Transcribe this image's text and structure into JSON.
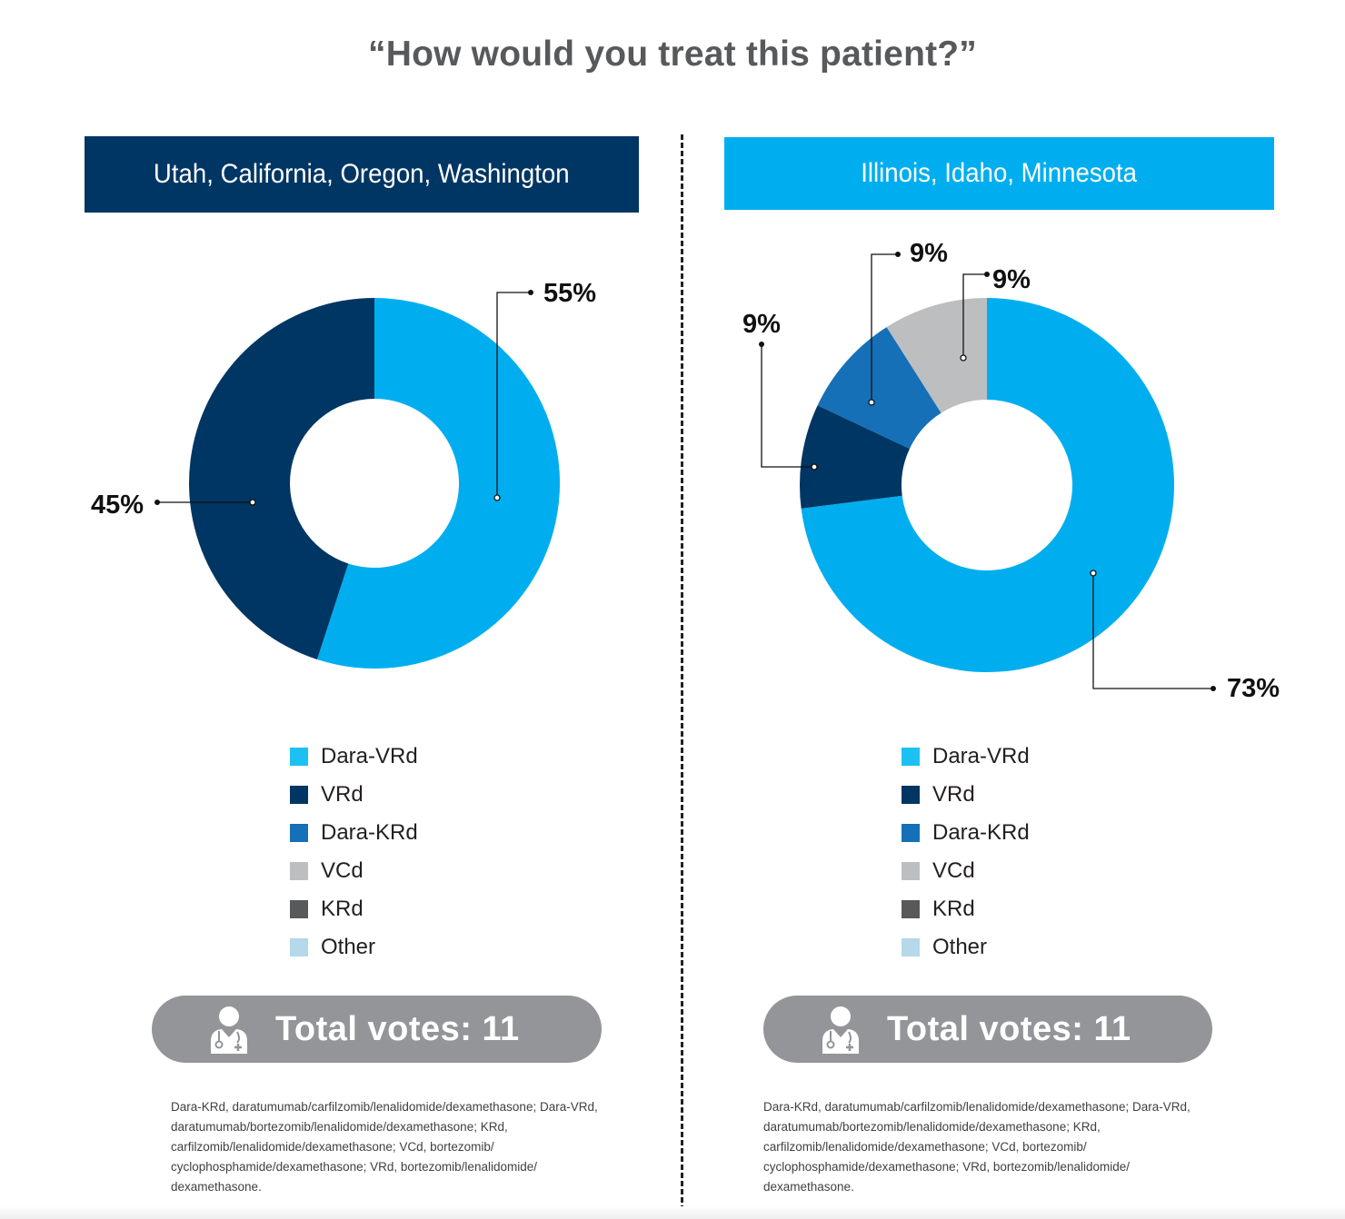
{
  "title": "“How would you treat this patient?”",
  "colors": {
    "dara_vrd": "#00aeef",
    "vrd": "#003663",
    "dara_krd": "#1570b8",
    "vcd": "#bcbec0",
    "krd": "#58595b",
    "other": "#b5d8ea",
    "header_left": "#003663",
    "header_right": "#00aeef",
    "votes_bg": "#939598"
  },
  "legend": [
    {
      "label": "Dara-VRd",
      "color": "#1cc1f2"
    },
    {
      "label": "VRd",
      "color": "#003663"
    },
    {
      "label": "Dara-KRd",
      "color": "#1570b8"
    },
    {
      "label": "VCd",
      "color": "#bcbec0"
    },
    {
      "label": "KRd",
      "color": "#58595b"
    },
    {
      "label": "Other",
      "color": "#b5d8ea"
    }
  ],
  "chart_data": [
    {
      "type": "pie",
      "title": "Utah, California, Oregon, Washington",
      "slices": [
        {
          "category": "Dara-VRd",
          "value": 55,
          "label": "55%",
          "color": "#00aeef"
        },
        {
          "category": "VRd",
          "value": 45,
          "label": "45%",
          "color": "#003663"
        }
      ],
      "total_votes_label": "Total votes: 11"
    },
    {
      "type": "pie",
      "title": "Illinois, Idaho, Minnesota",
      "slices": [
        {
          "category": "Dara-VRd",
          "value": 73,
          "label": "73%",
          "color": "#00aeef"
        },
        {
          "category": "VRd",
          "value": 9,
          "label": "9%",
          "color": "#003663"
        },
        {
          "category": "Dara-KRd",
          "value": 9,
          "label": "9%",
          "color": "#1570b8"
        },
        {
          "category": "VCd",
          "value": 9,
          "label": "9%",
          "color": "#bcbec0"
        }
      ],
      "total_votes_label": "Total votes: 11"
    }
  ],
  "footnote": "Dara-KRd, daratumumab/carfilzomib/lenalidomide/dexamethasone; Dara-VRd, daratumumab/bortezomib/lenalidomide/dexamethasone; KRd, carfilzomib/lenalidomide/dexamethasone; VCd, bortezomib/ cyclophosphamide/dexamethasone; VRd, bortezomib/lenalidomide/ dexamethasone."
}
